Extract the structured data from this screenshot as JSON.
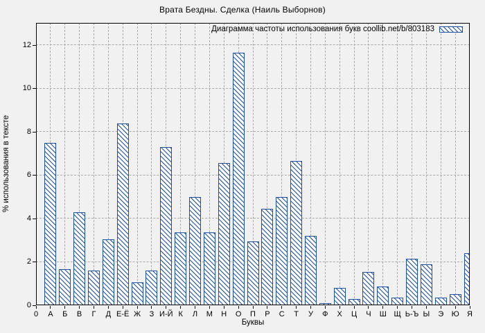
{
  "colors": {
    "bar_blue": "#1b50a5",
    "bar_fill": "#ffffff",
    "background": "#f1f1f1",
    "grid_gray": "#a9a9a9",
    "axis_black": "#000000"
  },
  "chart_data": {
    "type": "bar",
    "title": "Врата Бездны. Сделка (Наиль Выборнов)",
    "legend": "Диаграмма частоты использования букв coollib.net/b/803183",
    "legend_position": "top-right-inside",
    "xlabel": "Буквы",
    "ylabel": "% использования в тексте",
    "origin_tick_label": "0",
    "grid": true,
    "ylim": [
      0,
      13
    ],
    "yticks": [
      0,
      2,
      4,
      6,
      8,
      10,
      12
    ],
    "categories": [
      "А",
      "Б",
      "В",
      "Г",
      "Д",
      "Е-Ё",
      "Ж",
      "З",
      "И-Й",
      "К",
      "Л",
      "М",
      "Н",
      "О",
      "П",
      "Р",
      "С",
      "Т",
      "У",
      "Ф",
      "Х",
      "Ц",
      "Ч",
      "Ш",
      "Щ",
      "Ь-Ъ",
      "Ы",
      "Э",
      "Ю",
      "Я"
    ],
    "values": [
      7.5,
      1.65,
      4.3,
      1.6,
      3.05,
      8.4,
      1.05,
      1.6,
      7.3,
      3.35,
      5.0,
      3.35,
      6.55,
      11.65,
      2.95,
      4.45,
      5.0,
      6.65,
      3.2,
      0.1,
      0.8,
      0.3,
      1.55,
      0.85,
      0.35,
      2.15,
      1.9,
      0.35,
      0.5,
      2.4
    ]
  }
}
